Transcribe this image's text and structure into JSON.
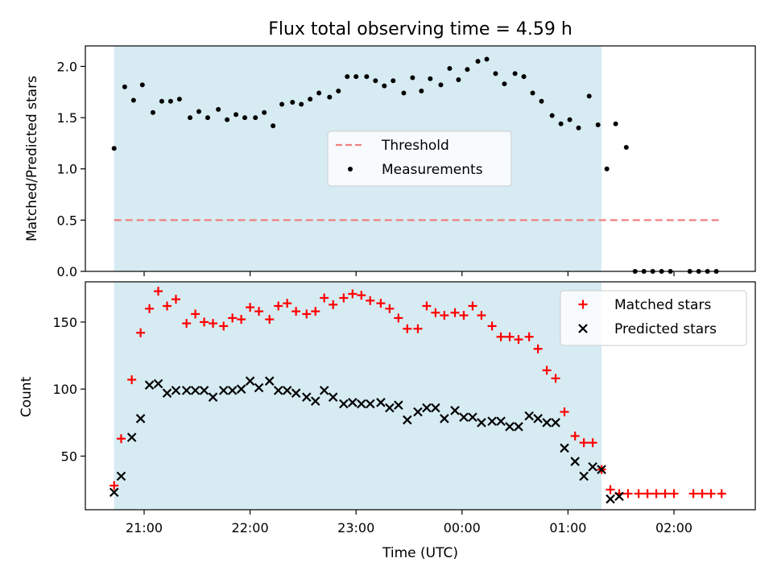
{
  "chart_data": {
    "title": "Flux total observing time = 4.59 h",
    "xlabel": "Time (UTC)",
    "x_ticks": [
      "21:00",
      "22:00",
      "23:00",
      "00:00",
      "01:00",
      "02:00"
    ],
    "observing_window": {
      "start": "20:43",
      "end": "01:19"
    },
    "panels": [
      {
        "type": "scatter",
        "ylabel": "Matched/Predicted stars",
        "ylim": [
          0,
          2.2
        ],
        "y_ticks": [
          "0.0",
          "0.5",
          "1.0",
          "1.5",
          "2.0"
        ],
        "legend_position": "center",
        "threshold": {
          "name": "Threshold",
          "value": 0.5,
          "color": "#f08080",
          "style": "dashed",
          "x_range": [
            "20:43",
            "02:27"
          ]
        },
        "series": [
          {
            "name": "Measurements",
            "color": "#000000",
            "marker": "dot",
            "x": [
              "20:43",
              "20:49",
              "20:54",
              "20:59",
              "21:05",
              "21:10",
              "21:15",
              "21:20",
              "21:26",
              "21:31",
              "21:36",
              "21:42",
              "21:47",
              "21:52",
              "21:57",
              "22:03",
              "22:08",
              "22:13",
              "22:18",
              "22:24",
              "22:29",
              "22:34",
              "22:39",
              "22:45",
              "22:50",
              "22:55",
              "23:00",
              "23:06",
              "23:11",
              "23:16",
              "23:21",
              "23:27",
              "23:32",
              "23:37",
              "23:42",
              "23:48",
              "23:53",
              "23:58",
              "00:03",
              "00:09",
              "00:14",
              "00:19",
              "00:24",
              "00:30",
              "00:35",
              "00:40",
              "00:45",
              "00:51",
              "00:56",
              "01:01",
              "01:06",
              "01:12",
              "01:17",
              "01:22",
              "01:27",
              "01:33",
              "01:38",
              "01:43",
              "01:48",
              "01:53",
              "01:58",
              "02:09",
              "02:14",
              "02:19",
              "02:24"
            ],
            "y": [
              1.2,
              1.8,
              1.67,
              1.82,
              1.55,
              1.66,
              1.66,
              1.68,
              1.5,
              1.56,
              1.5,
              1.58,
              1.48,
              1.53,
              1.5,
              1.5,
              1.55,
              1.42,
              1.63,
              1.65,
              1.63,
              1.68,
              1.74,
              1.7,
              1.76,
              1.9,
              1.9,
              1.9,
              1.86,
              1.81,
              1.86,
              1.74,
              1.89,
              1.76,
              1.88,
              1.82,
              1.98,
              1.87,
              1.97,
              2.05,
              2.07,
              1.93,
              1.83,
              1.93,
              1.9,
              1.74,
              1.66,
              1.52,
              1.44,
              1.48,
              1.4,
              1.71,
              1.43,
              1.0,
              1.44,
              1.21,
              0,
              0,
              0,
              0,
              0,
              0,
              0,
              0,
              0
            ]
          }
        ]
      },
      {
        "type": "scatter",
        "ylabel": "Count",
        "ylim": [
          10,
          180
        ],
        "y_ticks": [
          "50",
          "100",
          "150"
        ],
        "legend_position": "top-right",
        "series": [
          {
            "name": "Matched stars",
            "color": "#ff0000",
            "marker": "plus",
            "x": [
              "20:43",
              "20:47",
              "20:53",
              "20:58",
              "21:03",
              "21:08",
              "21:13",
              "21:18",
              "21:24",
              "21:29",
              "21:34",
              "21:39",
              "21:45",
              "21:50",
              "21:55",
              "22:00",
              "22:05",
              "22:11",
              "22:16",
              "22:21",
              "22:26",
              "22:32",
              "22:37",
              "22:42",
              "22:47",
              "22:53",
              "22:58",
              "23:03",
              "23:08",
              "23:14",
              "23:19",
              "23:24",
              "23:29",
              "23:35",
              "23:40",
              "23:45",
              "23:50",
              "23:56",
              "00:01",
              "00:06",
              "00:11",
              "00:17",
              "00:22",
              "00:27",
              "00:32",
              "00:38",
              "00:43",
              "00:48",
              "00:53",
              "00:58",
              "01:04",
              "01:09",
              "01:14",
              "01:19",
              "01:24",
              "01:29",
              "01:34",
              "01:40",
              "01:45",
              "01:50",
              "01:55",
              "02:00",
              "02:11",
              "02:16",
              "02:21",
              "02:27"
            ],
            "y": [
              28,
              63,
              107,
              142,
              160,
              173,
              162,
              167,
              149,
              156,
              150,
              149,
              147,
              153,
              152,
              161,
              158,
              152,
              162,
              164,
              158,
              156,
              158,
              168,
              163,
              168,
              171,
              170,
              166,
              164,
              160,
              153,
              145,
              145,
              162,
              157,
              155,
              157,
              155,
              162,
              155,
              147,
              139,
              139,
              137,
              139,
              130,
              114,
              108,
              83,
              65,
              60,
              60,
              40,
              25,
              22,
              22,
              22,
              22,
              22,
              22,
              22,
              22,
              22,
              22,
              22
            ]
          },
          {
            "name": "Predicted stars",
            "color": "#000000",
            "marker": "x",
            "x": [
              "20:43",
              "20:47",
              "20:53",
              "20:58",
              "21:03",
              "21:08",
              "21:13",
              "21:18",
              "21:24",
              "21:29",
              "21:34",
              "21:39",
              "21:45",
              "21:50",
              "21:55",
              "22:00",
              "22:05",
              "22:11",
              "22:16",
              "22:21",
              "22:26",
              "22:32",
              "22:37",
              "22:42",
              "22:47",
              "22:53",
              "22:58",
              "23:03",
              "23:08",
              "23:14",
              "23:19",
              "23:24",
              "23:29",
              "23:35",
              "23:40",
              "23:45",
              "23:50",
              "23:56",
              "00:01",
              "00:06",
              "00:11",
              "00:17",
              "00:22",
              "00:27",
              "00:32",
              "00:38",
              "00:43",
              "00:48",
              "00:53",
              "00:58",
              "01:04",
              "01:09",
              "01:14",
              "01:19",
              "01:24",
              "01:29"
            ],
            "y": [
              23,
              35,
              64,
              78,
              103,
              104,
              97,
              99,
              99,
              99,
              99,
              94,
              99,
              99,
              100,
              106,
              101,
              106,
              99,
              99,
              97,
              94,
              91,
              99,
              94,
              89,
              90,
              89,
              89,
              90,
              86,
              88,
              77,
              83,
              86,
              86,
              78,
              84,
              79,
              79,
              75,
              76,
              76,
              72,
              72,
              80,
              78,
              75,
              75,
              56,
              46,
              35,
              42,
              40,
              18,
              20
            ]
          }
        ]
      }
    ]
  }
}
